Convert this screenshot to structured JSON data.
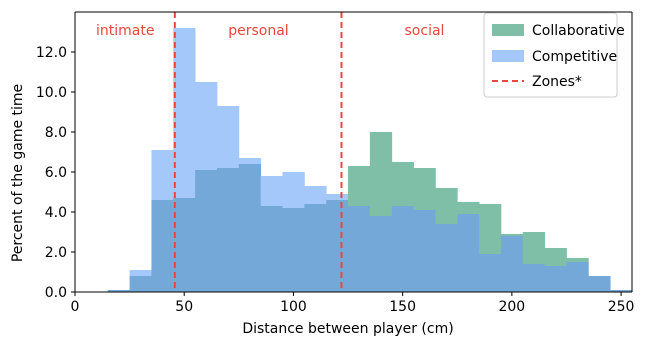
{
  "chart_data": {
    "type": "bar",
    "subtype": "overlapping-histogram",
    "xlabel": "Distance between player (cm)",
    "ylabel": "Percent of the game time",
    "xlim": [
      0,
      255
    ],
    "ylim": [
      0,
      14.0
    ],
    "xticks": [
      0,
      50,
      100,
      150,
      200,
      250
    ],
    "yticks": [
      0.0,
      2.0,
      4.0,
      6.0,
      8.0,
      10.0,
      12.0
    ],
    "ytick_labels": [
      "0.0",
      "2.0",
      "4.0",
      "6.0",
      "8.0",
      "10.0",
      "12.0"
    ],
    "bin_width": 10,
    "bin_starts": [
      15,
      25,
      35,
      45,
      55,
      65,
      75,
      85,
      95,
      105,
      115,
      125,
      135,
      145,
      155,
      165,
      175,
      185,
      195,
      205,
      215,
      225,
      235,
      245
    ],
    "series": [
      {
        "name": "Collaborative",
        "color": "#7fbfa8",
        "values": [
          0.1,
          0.8,
          4.6,
          4.7,
          6.1,
          6.2,
          6.4,
          4.3,
          4.2,
          4.4,
          4.6,
          6.3,
          8.0,
          6.5,
          6.2,
          5.2,
          4.5,
          4.4,
          2.9,
          3.0,
          2.2,
          1.7,
          0.8,
          0.1
        ]
      },
      {
        "name": "Competitive",
        "color": "#a4c8fa",
        "values": [
          0.1,
          1.1,
          7.1,
          13.2,
          10.5,
          9.3,
          6.7,
          5.8,
          6.0,
          5.3,
          4.9,
          4.3,
          3.8,
          4.3,
          4.1,
          3.4,
          3.9,
          1.9,
          2.8,
          1.4,
          1.3,
          1.5,
          0.8,
          0.1
        ]
      }
    ],
    "overlap_color": "#74a8d9",
    "zones": {
      "legend_label": "Zones*",
      "color": "#e8473e",
      "boundaries": [
        45.7,
        122
      ],
      "labels": [
        {
          "text": "intimate",
          "x": 23
        },
        {
          "text": "personal",
          "x": 84
        },
        {
          "text": "social",
          "x": 160
        }
      ]
    },
    "legend_position": "top-right",
    "grid": false
  }
}
